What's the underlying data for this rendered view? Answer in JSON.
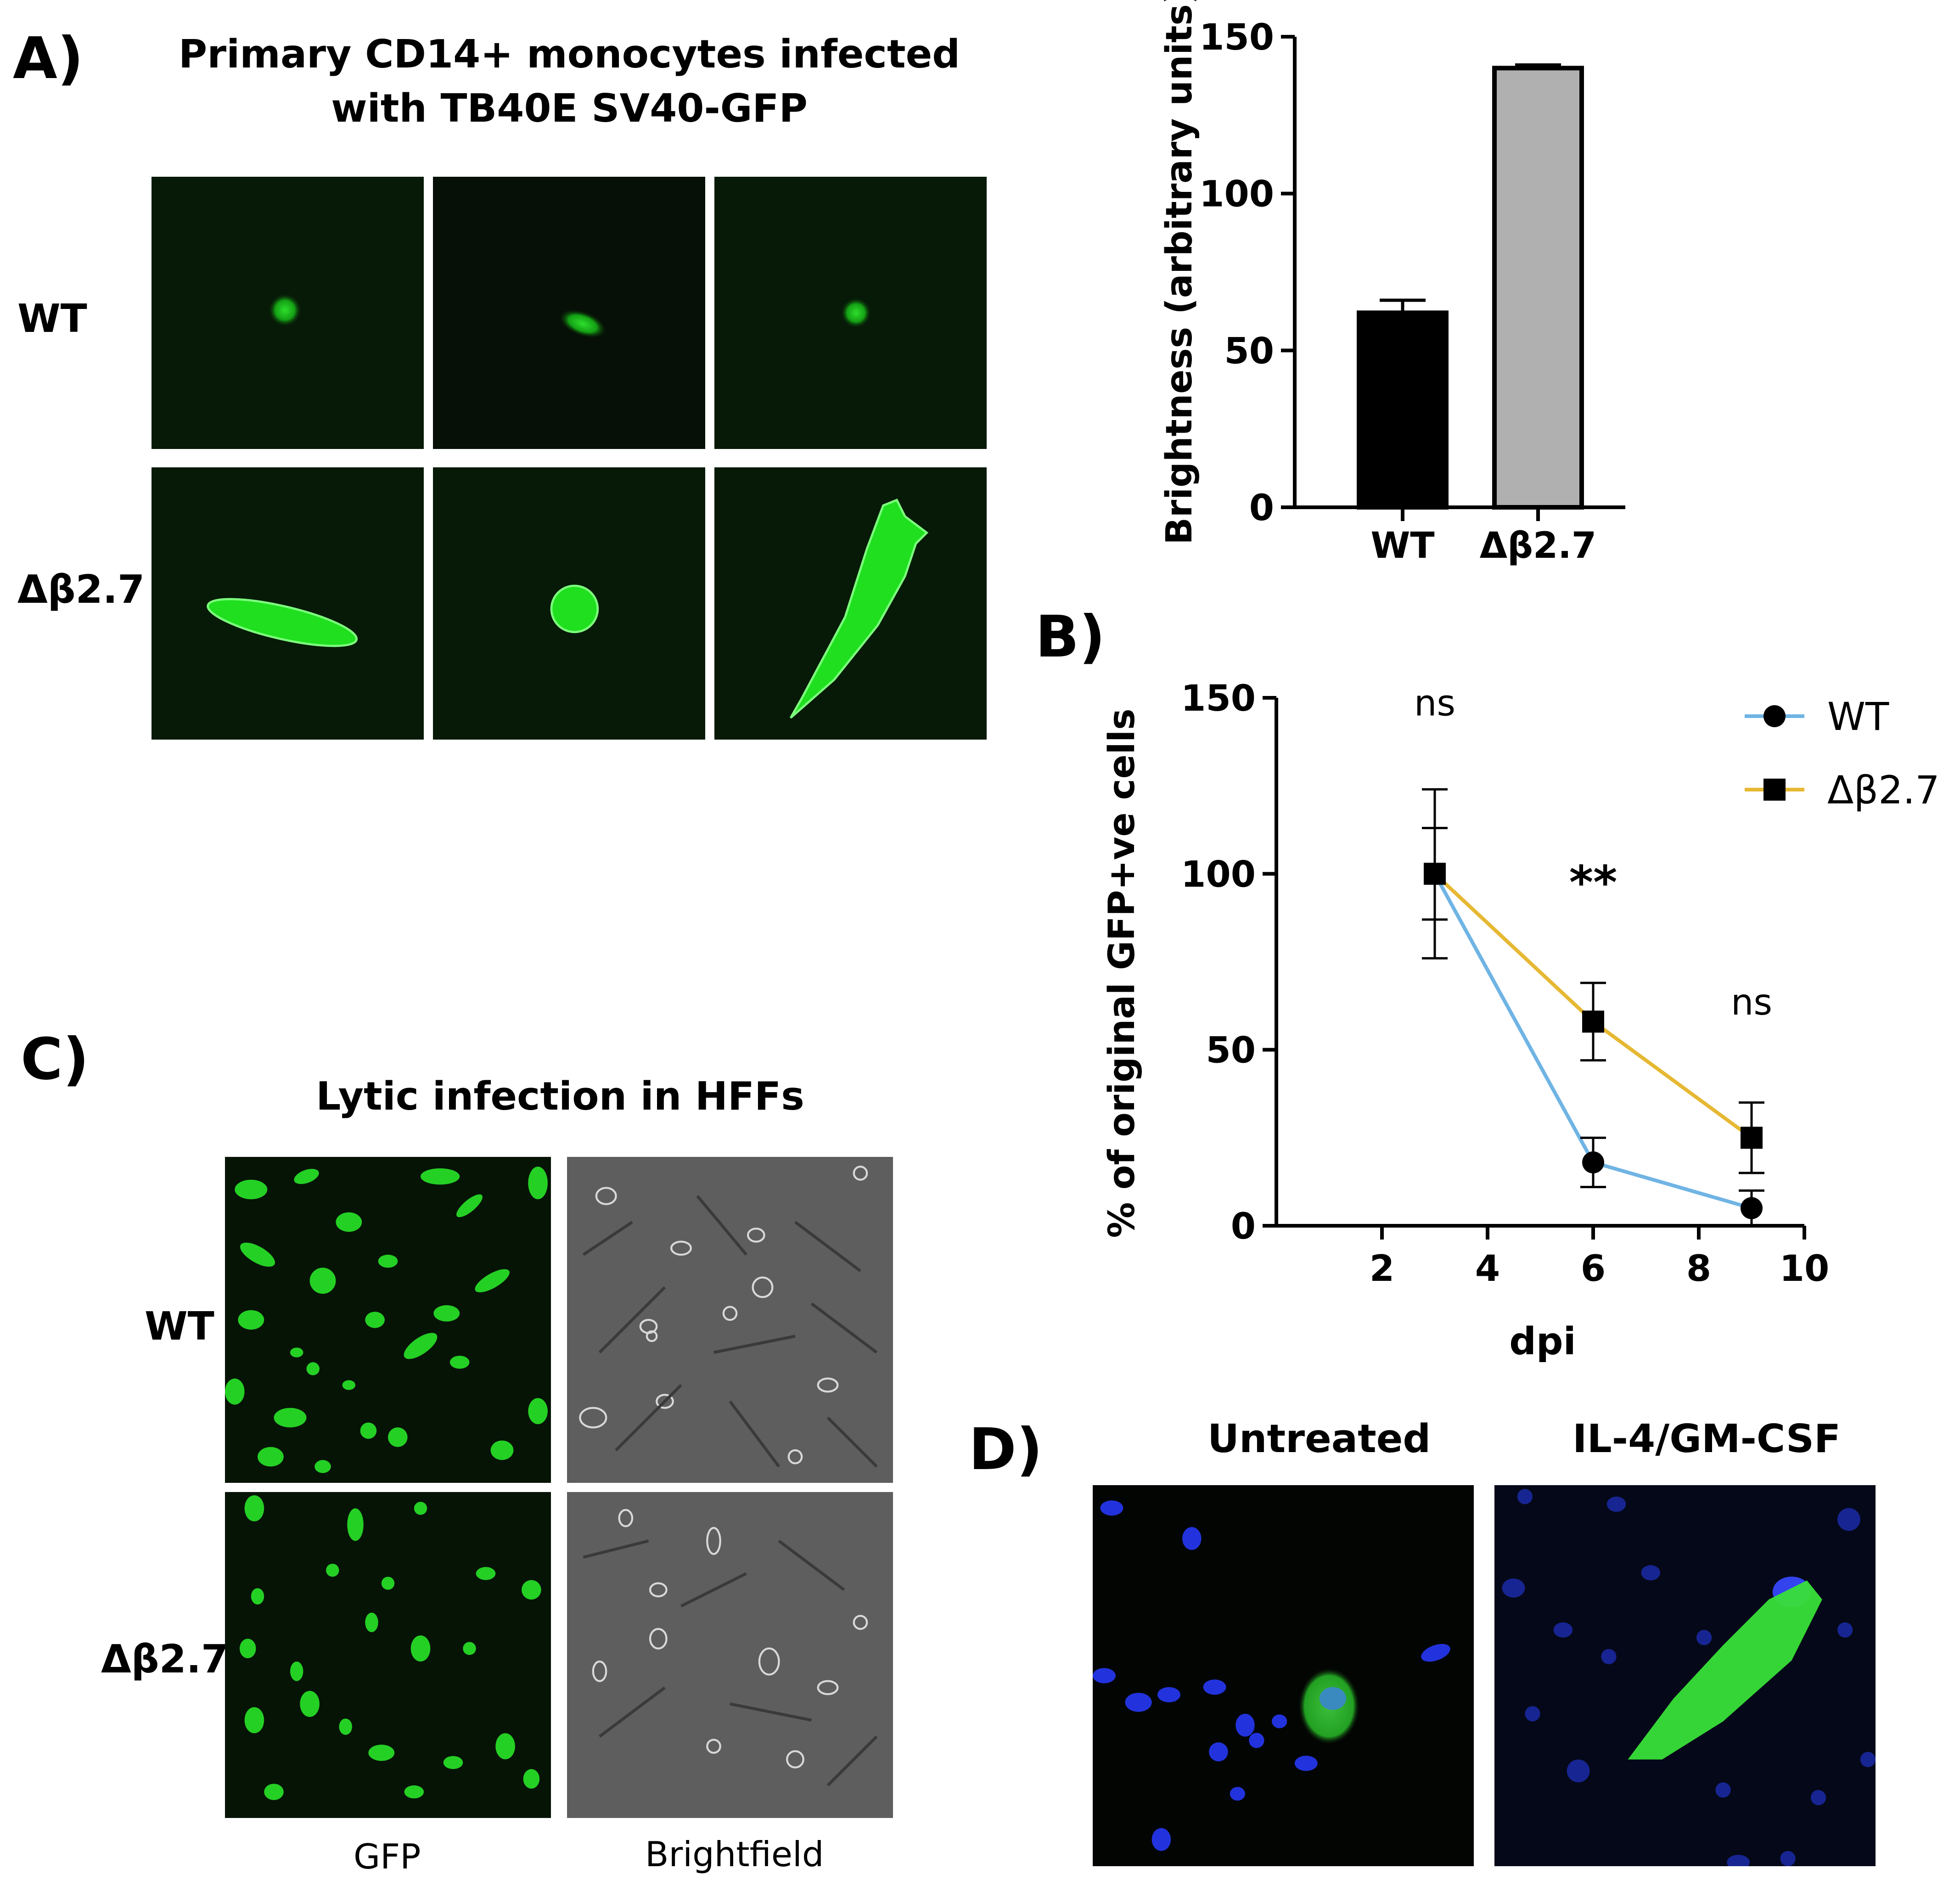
{
  "panel_labels": {
    "a": "A)",
    "b": "B)",
    "c": "C)",
    "d": "D)"
  },
  "panel_a": {
    "title_line1": "Primary CD14+ monocytes infected",
    "title_line2": "with TB40E SV40-GFP",
    "row_wt": "WT",
    "row_mut": "Δβ2.7"
  },
  "panel_c": {
    "title": "Lytic infection in HFFs",
    "row_wt": "WT",
    "row_mut": "Δβ2.7",
    "col_gfp": "GFP",
    "col_bf": "Brightfield"
  },
  "panel_d": {
    "col_untreated": "Untreated",
    "col_treated": "IL-4/GM-CSF"
  },
  "colors": {
    "gfp": "#22dd22",
    "wt_line": "#6fb4e4",
    "mut_line": "#e6b833",
    "mut_bar": "#b0b0b0",
    "dapi": "#2233dd"
  },
  "chart_data": [
    {
      "type": "bar",
      "categories": [
        "WT",
        "Δβ2.7"
      ],
      "values": [
        62,
        140
      ],
      "errors": [
        4,
        1
      ],
      "ylabel": "Brightness (arbitrary units)",
      "ylim": [
        0,
        150
      ],
      "yticks": [
        0,
        50,
        100,
        150
      ]
    },
    {
      "type": "line",
      "xlabel": "dpi",
      "ylabel": "% of original GFP+ve cells",
      "xlim": [
        0,
        10
      ],
      "ylim": [
        0,
        150
      ],
      "xticks": [
        2,
        4,
        6,
        8,
        10
      ],
      "yticks": [
        0,
        50,
        100,
        150
      ],
      "legend": "top-right",
      "series": [
        {
          "name": "WT",
          "x": [
            3,
            6,
            9
          ],
          "y": [
            100,
            18,
            5
          ],
          "err": [
            13,
            7,
            5
          ]
        },
        {
          "name": "Δβ2.7",
          "x": [
            3,
            6,
            9
          ],
          "y": [
            100,
            58,
            25
          ],
          "err": [
            24,
            11,
            10
          ]
        }
      ],
      "annotations": [
        {
          "x": 3,
          "y": 145,
          "text": "ns"
        },
        {
          "x": 6,
          "y": 93,
          "text": "**"
        },
        {
          "x": 9,
          "y": 60,
          "text": "ns"
        }
      ]
    }
  ]
}
